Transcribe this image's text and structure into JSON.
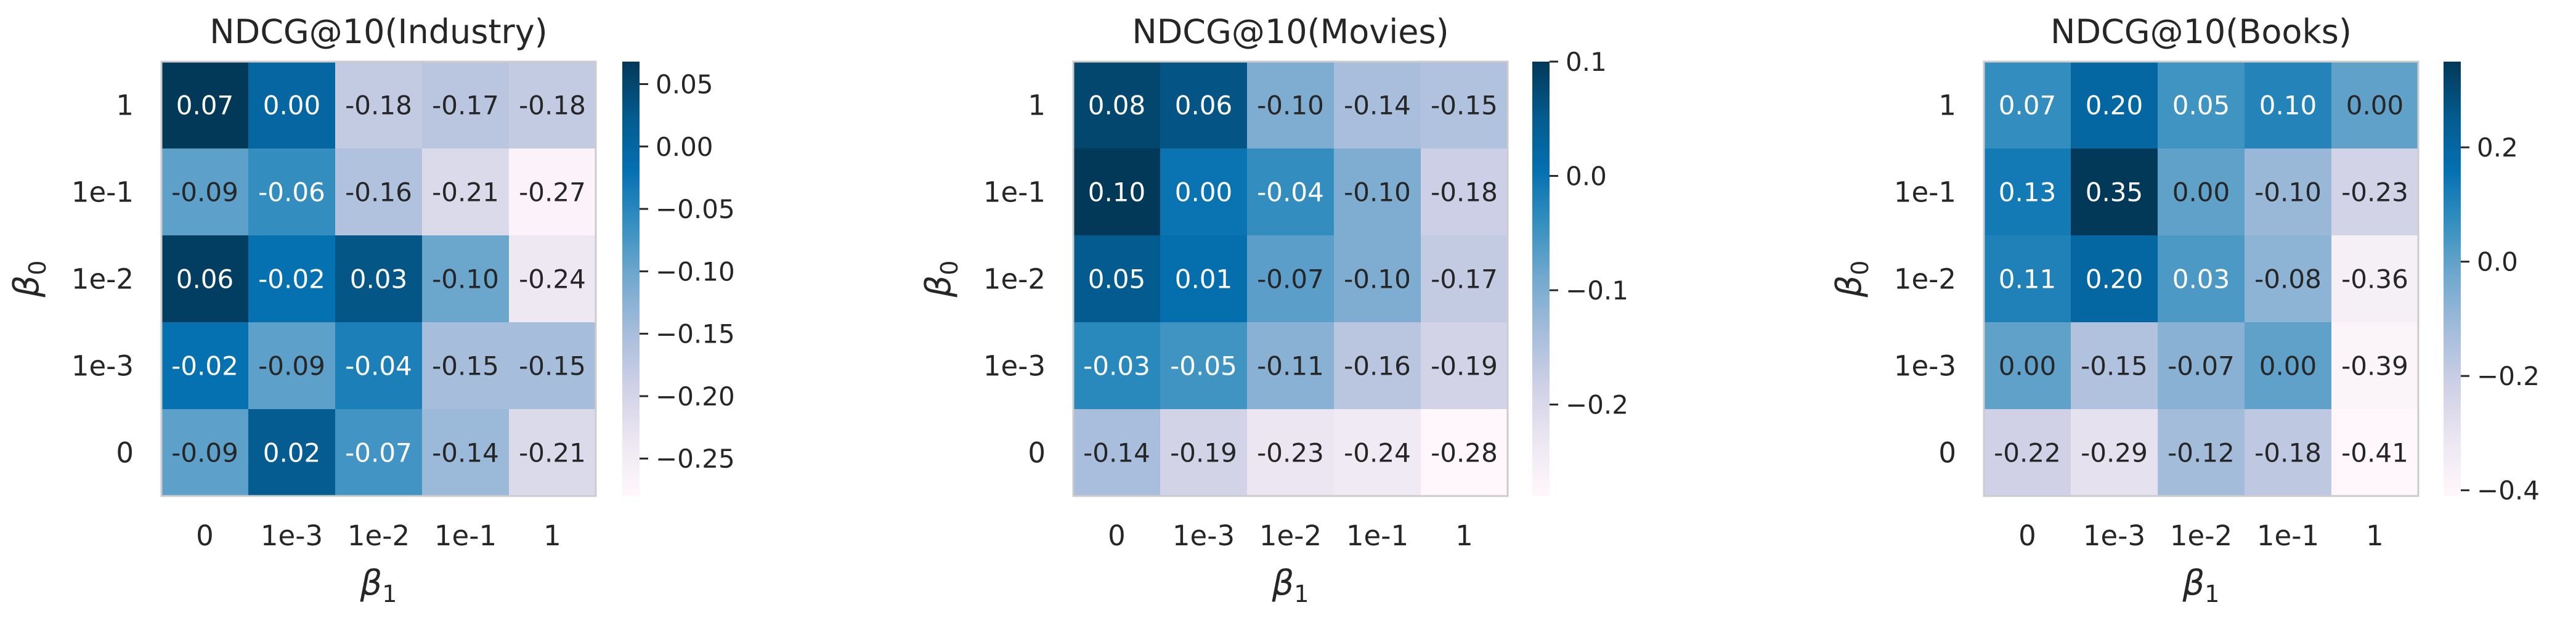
{
  "chart_data": [
    {
      "type": "heatmap",
      "title": "NDCG@10(Industry)",
      "xlabel": "β",
      "xlabel_sub": "1",
      "ylabel": "β",
      "ylabel_sub": "0",
      "x_categories": [
        "0",
        "1e-3",
        "1e-2",
        "1e-1",
        "1"
      ],
      "y_categories": [
        "1",
        "1e-1",
        "1e-2",
        "1e-3",
        "0"
      ],
      "values": [
        [
          0.07,
          0.0,
          -0.18,
          -0.17,
          -0.18
        ],
        [
          -0.09,
          -0.06,
          -0.16,
          -0.21,
          -0.27
        ],
        [
          0.06,
          -0.02,
          0.03,
          -0.1,
          -0.24
        ],
        [
          -0.02,
          -0.09,
          -0.04,
          -0.15,
          -0.15
        ],
        [
          -0.09,
          0.02,
          -0.07,
          -0.14,
          -0.21
        ]
      ],
      "labels": [
        [
          "0.07",
          "0.00",
          "-0.18",
          "-0.17",
          "-0.18"
        ],
        [
          "-0.09",
          "-0.06",
          "-0.16",
          "-0.21",
          "-0.27"
        ],
        [
          "0.06",
          "-0.02",
          "0.03",
          "-0.10",
          "-0.24"
        ],
        [
          "-0.02",
          "-0.09",
          "-0.04",
          "-0.15",
          "-0.15"
        ],
        [
          "-0.09",
          "0.02",
          "-0.07",
          "-0.14",
          "-0.21"
        ]
      ],
      "vmin": -0.28,
      "vmax": 0.068,
      "colorbar_ticks": [
        0.05,
        0.0,
        -0.05,
        -0.1,
        -0.15,
        -0.2,
        -0.25
      ],
      "colorbar_labels": [
        "0.05",
        "0.00",
        "−0.05",
        "−0.10",
        "−0.15",
        "−0.20",
        "−0.25"
      ],
      "colormap": "PuBu"
    },
    {
      "type": "heatmap",
      "title": "NDCG@10(Movies)",
      "xlabel": "β",
      "xlabel_sub": "1",
      "ylabel": "β",
      "ylabel_sub": "0",
      "x_categories": [
        "0",
        "1e-3",
        "1e-2",
        "1e-1",
        "1"
      ],
      "y_categories": [
        "1",
        "1e-1",
        "1e-2",
        "1e-3",
        "0"
      ],
      "values": [
        [
          0.08,
          0.06,
          -0.1,
          -0.14,
          -0.15
        ],
        [
          0.1,
          0.0,
          -0.04,
          -0.1,
          -0.18
        ],
        [
          0.05,
          0.01,
          -0.07,
          -0.1,
          -0.17
        ],
        [
          -0.03,
          -0.05,
          -0.11,
          -0.16,
          -0.19
        ],
        [
          -0.14,
          -0.19,
          -0.23,
          -0.24,
          -0.28
        ]
      ],
      "labels": [
        [
          "0.08",
          "0.06",
          "-0.10",
          "-0.14",
          "-0.15"
        ],
        [
          "0.10",
          "0.00",
          "-0.04",
          "-0.10",
          "-0.18"
        ],
        [
          "0.05",
          "0.01",
          "-0.07",
          "-0.10",
          "-0.17"
        ],
        [
          "-0.03",
          "-0.05",
          "-0.11",
          "-0.16",
          "-0.19"
        ],
        [
          "-0.14",
          "-0.19",
          "-0.23",
          "-0.24",
          "-0.28"
        ]
      ],
      "vmin": -0.28,
      "vmax": 0.1,
      "colorbar_ticks": [
        0.1,
        0.0,
        -0.1,
        -0.2
      ],
      "colorbar_labels": [
        "0.1",
        "0.0",
        "−0.1",
        "−0.2"
      ],
      "colormap": "PuBu"
    },
    {
      "type": "heatmap",
      "title": "NDCG@10(Books)",
      "xlabel": "β",
      "xlabel_sub": "1",
      "ylabel": "β",
      "ylabel_sub": "0",
      "x_categories": [
        "0",
        "1e-3",
        "1e-2",
        "1e-1",
        "1"
      ],
      "y_categories": [
        "1",
        "1e-1",
        "1e-2",
        "1e-3",
        "0"
      ],
      "values": [
        [
          0.07,
          0.2,
          0.05,
          0.1,
          0.0
        ],
        [
          0.13,
          0.35,
          0.0,
          -0.1,
          -0.23
        ],
        [
          0.11,
          0.2,
          0.03,
          -0.08,
          -0.36
        ],
        [
          0.0,
          -0.15,
          -0.07,
          0.0,
          -0.39
        ],
        [
          -0.22,
          -0.29,
          -0.12,
          -0.18,
          -0.41
        ]
      ],
      "labels": [
        [
          "0.07",
          "0.20",
          "0.05",
          "0.10",
          "0.00"
        ],
        [
          "0.13",
          "0.35",
          "0.00",
          "-0.10",
          "-0.23"
        ],
        [
          "0.11",
          "0.20",
          "0.03",
          "-0.08",
          "-0.36"
        ],
        [
          "0.00",
          "-0.15",
          "-0.07",
          "0.00",
          "-0.39"
        ],
        [
          "-0.22",
          "-0.29",
          "-0.12",
          "-0.18",
          "-0.41"
        ]
      ],
      "vmin": -0.41,
      "vmax": 0.35,
      "colorbar_ticks": [
        0.2,
        0.0,
        -0.2,
        -0.4
      ],
      "colorbar_labels": [
        "0.2",
        "0.0",
        "−0.2",
        "−0.4"
      ],
      "colormap": "PuBu"
    }
  ]
}
